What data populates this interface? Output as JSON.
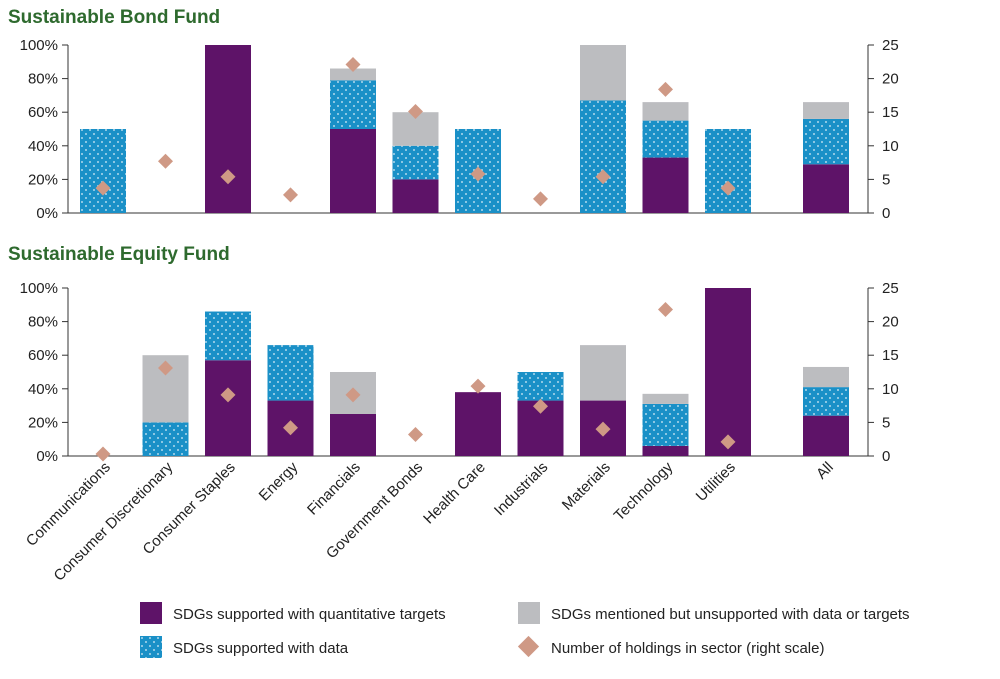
{
  "chart_data": [
    {
      "type": "bar",
      "title": "Sustainable Bond Fund",
      "categories": [
        "Communications",
        "Consumer Discretionary",
        "Consumer Staples",
        "Energy",
        "Financials",
        "Government Bonds",
        "Health Care",
        "Industrials",
        "Materials",
        "Technology",
        "Utilities",
        "All"
      ],
      "series": [
        {
          "name": "SDGs supported with quantitative targets",
          "values": [
            0,
            0,
            100,
            0,
            50,
            20,
            0,
            0,
            0,
            33,
            0,
            29
          ]
        },
        {
          "name": "SDGs supported with data",
          "values": [
            50,
            0,
            0,
            0,
            29,
            20,
            50,
            0,
            67,
            22,
            50,
            27
          ]
        },
        {
          "name": "SDGs mentioned but unsupported with data or targets",
          "values": [
            0,
            0,
            0,
            0,
            7,
            20,
            0,
            0,
            33,
            11,
            0,
            10
          ]
        }
      ],
      "holdings": {
        "name": "Number of holdings in sector (right scale)",
        "values": [
          3.7,
          7.7,
          5.4,
          2.7,
          22.1,
          15.1,
          5.8,
          2.1,
          5.4,
          18.4,
          3.7,
          null
        ]
      },
      "ylim": [
        0,
        100
      ],
      "y_ticks": [
        "0%",
        "20%",
        "40%",
        "60%",
        "80%",
        "100%"
      ],
      "y2lim": [
        0,
        25
      ],
      "y2_ticks": [
        "0",
        "5",
        "10",
        "15",
        "20",
        "25"
      ]
    },
    {
      "type": "bar",
      "title": "Sustainable Equity Fund",
      "categories": [
        "Communications",
        "Consumer Discretionary",
        "Consumer Staples",
        "Energy",
        "Financials",
        "Government Bonds",
        "Health Care",
        "Industrials",
        "Materials",
        "Technology",
        "Utilities",
        "All"
      ],
      "series": [
        {
          "name": "SDGs supported with quantitative targets",
          "values": [
            0,
            0,
            57,
            33,
            25,
            0,
            38,
            33,
            33,
            6,
            100,
            24
          ]
        },
        {
          "name": "SDGs supported with data",
          "values": [
            0,
            20,
            29,
            33,
            0,
            0,
            0,
            17,
            0,
            25,
            0,
            17
          ]
        },
        {
          "name": "SDGs mentioned but unsupported with data or targets",
          "values": [
            0,
            40,
            0,
            0,
            25,
            0,
            0,
            0,
            33,
            6,
            0,
            12
          ]
        }
      ],
      "holdings": {
        "name": "Number of holdings in sector (right scale)",
        "values": [
          0.3,
          13.1,
          9.1,
          4.2,
          9.1,
          3.2,
          10.4,
          7.4,
          4.0,
          21.8,
          2.1,
          null
        ]
      },
      "ylim": [
        0,
        100
      ],
      "y_ticks": [
        "0%",
        "20%",
        "40%",
        "60%",
        "80%",
        "100%"
      ],
      "y2lim": [
        0,
        25
      ],
      "y2_ticks": [
        "0",
        "5",
        "10",
        "15",
        "20",
        "25"
      ]
    }
  ],
  "legend": [
    {
      "key": "quant",
      "label": "SDGs supported with quantitative targets"
    },
    {
      "key": "unsupported",
      "label": "SDGs mentioned but unsupported with data or targets"
    },
    {
      "key": "data",
      "label": "SDGs supported with data"
    },
    {
      "key": "holdings",
      "label": "Number of holdings in sector (right scale)"
    }
  ],
  "colors": {
    "quant": "#5e1368",
    "data": "#1a90c7",
    "unsupported": "#bcbdc0",
    "holdings": "#cf9985",
    "title": "#2e6a2e"
  }
}
